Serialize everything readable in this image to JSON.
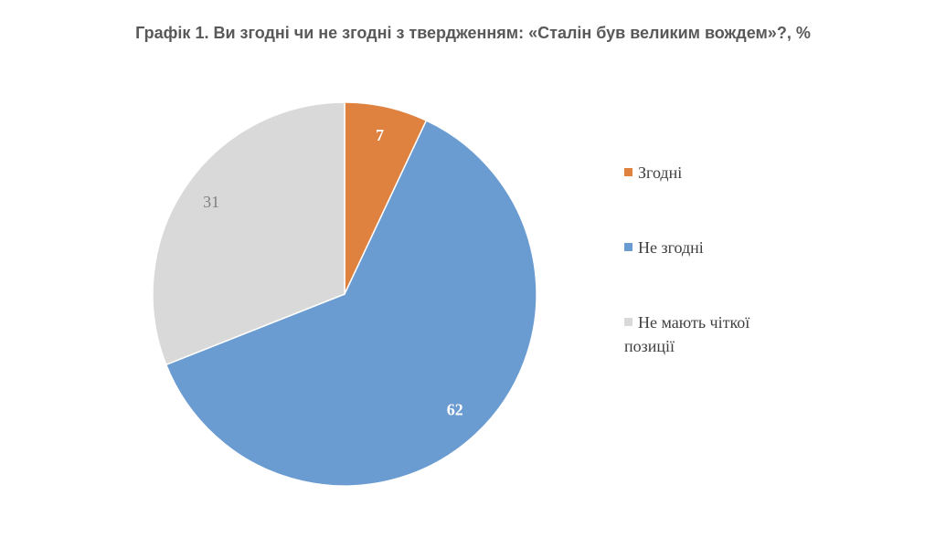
{
  "chart_data": {
    "type": "pie",
    "title": "Графік 1. Ви згодні чи не згодні з твердженням: «Сталін був великим вождем»?, %",
    "categories": [
      "Згодні",
      "Не згодні",
      "Не мають чіткої позиції"
    ],
    "values": [
      7,
      62,
      31
    ],
    "colors": [
      "#e0823f",
      "#6a9bd1",
      "#d9d9d9"
    ],
    "legend": "right"
  }
}
